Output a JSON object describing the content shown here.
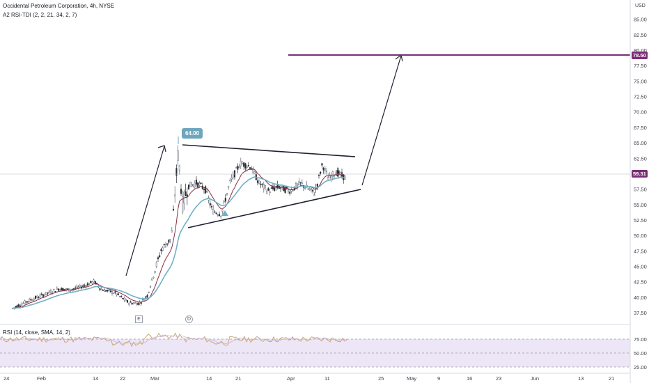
{
  "header": {
    "symbol_line": "Occidental Petroleum Corporation, 4h, NYSE",
    "indicator_line": "A2 RSI-TDI (2, 2, 21, 34, 2, 7)"
  },
  "rsi_pane": {
    "label": "RSI (14, close, SMA, 14, 2)"
  },
  "currency": "USD",
  "price_axis": [
    "85.00",
    "82.50",
    "80.00",
    "77.50",
    "75.00",
    "72.50",
    "70.00",
    "67.50",
    "65.00",
    "62.50",
    "60.00",
    "57.50",
    "55.00",
    "52.50",
    "50.00",
    "47.50",
    "45.00",
    "42.50",
    "40.00",
    "37.50"
  ],
  "rsi_axis": [
    "75.00",
    "50.00",
    "25.00"
  ],
  "time_axis": [
    "24",
    "Feb",
    "14",
    "22",
    "Mar",
    "14",
    "21",
    "Apr",
    "11",
    "25",
    "May",
    "9",
    "16",
    "23",
    "Jun",
    "13",
    "21"
  ],
  "tags": {
    "target": "78.50",
    "last": "59.31"
  },
  "callout": "64.00",
  "markers": {
    "earnings": "E",
    "dividend": "D"
  },
  "colors": {
    "target_line": "#7b2c75",
    "last_price": "#7b2c75",
    "candle_up": "#5f6470",
    "candle_down": "#2a2e39",
    "ema_fast": "#8b2d3a",
    "ema_slow": "#6fb0c8",
    "rsi_line": "#c9a06a",
    "rsi_band": "#ede6f6"
  }
}
